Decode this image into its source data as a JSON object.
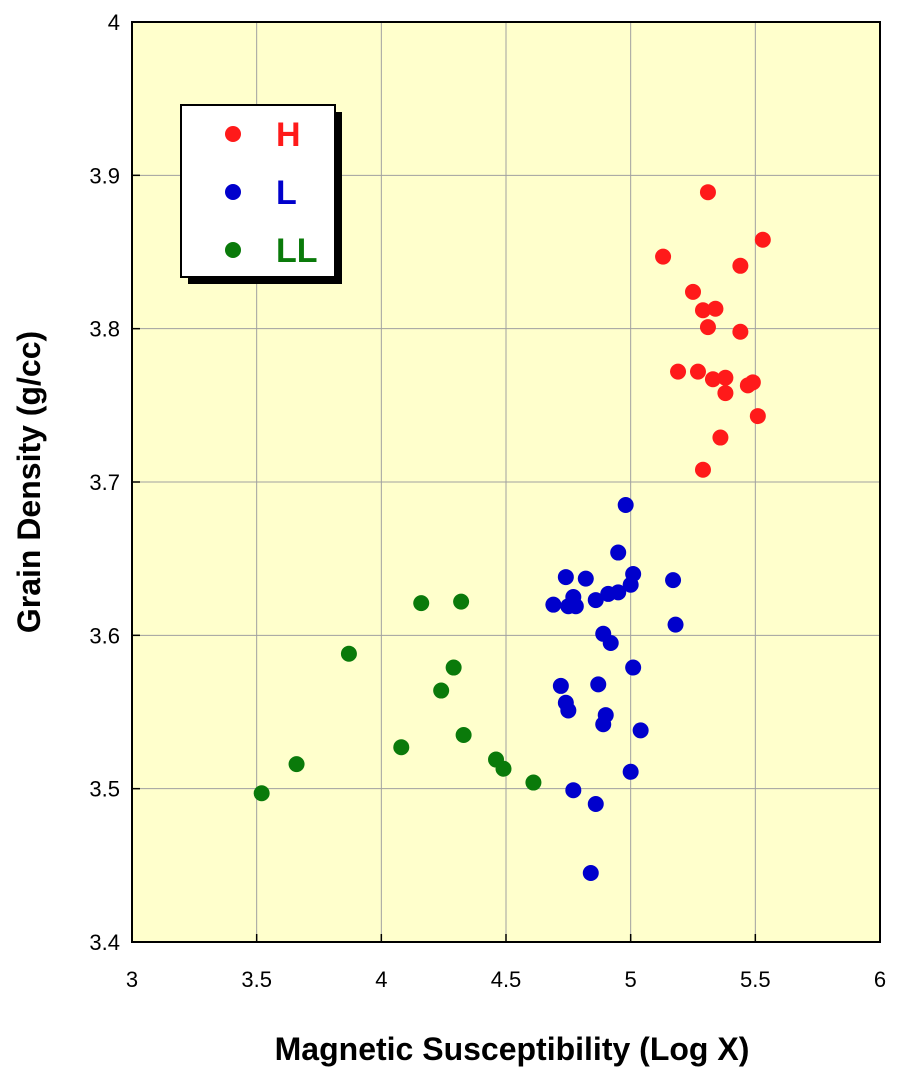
{
  "chart_data": {
    "type": "scatter",
    "xlabel": "Magnetic Susceptibility (Log X)",
    "ylabel": "Grain Density (g/cc)",
    "xlim": [
      3,
      6
    ],
    "ylim": [
      3.4,
      4
    ],
    "x_ticks": [
      3,
      3.5,
      4,
      4.5,
      5,
      5.5,
      6
    ],
    "y_ticks": [
      3.4,
      3.5,
      3.6,
      3.7,
      3.8,
      3.9,
      4
    ],
    "x_tick_labels": [
      "3",
      "3.5",
      "4",
      "4.5",
      "5",
      "5.5",
      "6"
    ],
    "y_tick_labels": [
      "3.4",
      "3.5",
      "3.6",
      "3.7",
      "3.8",
      "3.9",
      "4"
    ],
    "grid": true,
    "background_color": "#ffffcc",
    "legend_position": "top-left",
    "series": [
      {
        "name": "H",
        "color": "#ff1a1a",
        "points": [
          [
            5.31,
            3.889
          ],
          [
            5.53,
            3.858
          ],
          [
            5.13,
            3.847
          ],
          [
            5.44,
            3.841
          ],
          [
            5.25,
            3.824
          ],
          [
            5.29,
            3.812
          ],
          [
            5.34,
            3.813
          ],
          [
            5.31,
            3.801
          ],
          [
            5.44,
            3.798
          ],
          [
            5.19,
            3.772
          ],
          [
            5.27,
            3.772
          ],
          [
            5.33,
            3.767
          ],
          [
            5.38,
            3.768
          ],
          [
            5.47,
            3.763
          ],
          [
            5.49,
            3.765
          ],
          [
            5.38,
            3.758
          ],
          [
            5.51,
            3.743
          ],
          [
            5.36,
            3.729
          ],
          [
            5.29,
            3.708
          ]
        ]
      },
      {
        "name": "L",
        "color": "#0000cc",
        "points": [
          [
            4.98,
            3.685
          ],
          [
            4.95,
            3.654
          ],
          [
            4.74,
            3.638
          ],
          [
            4.82,
            3.637
          ],
          [
            5.01,
            3.64
          ],
          [
            5.17,
            3.636
          ],
          [
            5.0,
            3.633
          ],
          [
            4.95,
            3.628
          ],
          [
            4.91,
            3.627
          ],
          [
            4.77,
            3.625
          ],
          [
            4.86,
            3.623
          ],
          [
            4.69,
            3.62
          ],
          [
            4.75,
            3.619
          ],
          [
            4.78,
            3.619
          ],
          [
            5.18,
            3.607
          ],
          [
            4.89,
            3.601
          ],
          [
            4.92,
            3.595
          ],
          [
            5.01,
            3.579
          ],
          [
            4.87,
            3.568
          ],
          [
            4.72,
            3.567
          ],
          [
            4.74,
            3.556
          ],
          [
            4.75,
            3.551
          ],
          [
            4.9,
            3.548
          ],
          [
            4.89,
            3.542
          ],
          [
            5.04,
            3.538
          ],
          [
            5.0,
            3.511
          ],
          [
            4.77,
            3.499
          ],
          [
            4.86,
            3.49
          ],
          [
            4.84,
            3.445
          ]
        ]
      },
      {
        "name": "LL",
        "color": "#0a7a0a",
        "points": [
          [
            4.32,
            3.622
          ],
          [
            4.16,
            3.621
          ],
          [
            3.87,
            3.588
          ],
          [
            4.29,
            3.579
          ],
          [
            4.24,
            3.564
          ],
          [
            4.33,
            3.535
          ],
          [
            4.08,
            3.527
          ],
          [
            4.46,
            3.519
          ],
          [
            3.66,
            3.516
          ],
          [
            4.49,
            3.513
          ],
          [
            4.61,
            3.504
          ],
          [
            3.52,
            3.497
          ]
        ]
      }
    ]
  }
}
